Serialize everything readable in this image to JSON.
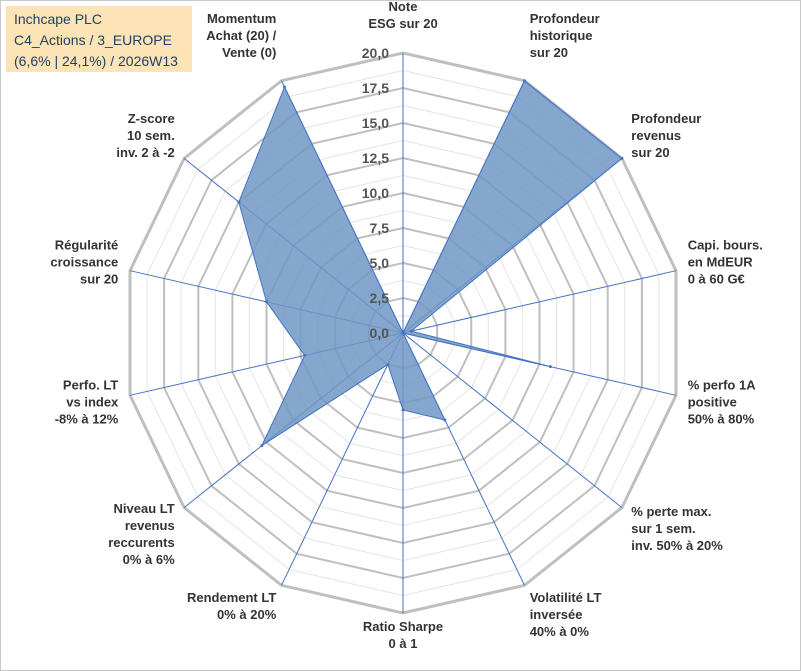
{
  "header": {
    "company": "Inchcape PLC",
    "portfolio": "C4_Actions / 3_EUROPE",
    "stats": "(6,6% | 24,1%) / 2026W13"
  },
  "chart_data": {
    "type": "radar",
    "title": "Inchcape PLC",
    "rmin": 0,
    "rmax": 20,
    "tick_step": 2.5,
    "tick_labels": [
      "0,0",
      "2,5",
      "5,0",
      "7,5",
      "10,0",
      "12,5",
      "15,0",
      "17,5",
      "20,0"
    ],
    "categories": [
      [
        "Note",
        "ESG sur 20"
      ],
      [
        "Profondeur",
        "historique",
        "sur 20"
      ],
      [
        "Profondeur",
        "revenus",
        "sur 20"
      ],
      [
        "Capi. bours.",
        "en MdEUR",
        "0 à 60 G€"
      ],
      [
        "% perfo 1A",
        "positive",
        "50% à 80%"
      ],
      [
        "% perte max.",
        "sur 1 sem.",
        "inv. 50% à 20%"
      ],
      [
        "Volatilité LT",
        "inversée",
        "40% à 0%"
      ],
      [
        "Ratio Sharpe",
        "0 à 1"
      ],
      [
        "Rendement LT",
        "0% à 20%"
      ],
      [
        "Niveau LT",
        "revenus",
        "reccurents",
        "0% à 6%"
      ],
      [
        "Perfo. LT",
        "vs index",
        "-8% à 12%"
      ],
      [
        "Régularité",
        "croissance",
        "sur 20"
      ],
      [
        "Z-score",
        "10 sem.",
        "inv. 2 à -2"
      ],
      [
        "Momentum",
        "Achat (20) /",
        "Vente (0)"
      ]
    ],
    "series": [
      {
        "name": "Inchcape PLC",
        "values": [
          0.0,
          20.0,
          20.0,
          0.6,
          10.8,
          0.0,
          6.9,
          5.5,
          2.5,
          12.9,
          7.2,
          10.0,
          15.0,
          19.5
        ]
      }
    ],
    "colors": {
      "fill": "#7096c4",
      "stroke": "#4472c4",
      "grid": "#bfbfbf",
      "spoke": "#4472c4"
    }
  }
}
